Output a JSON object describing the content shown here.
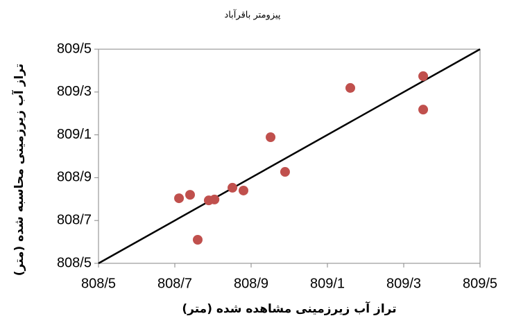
{
  "chart_data": {
    "type": "scatter",
    "title": "پیزومتر باقرآباد",
    "x_label": "تراز آب زیرزمینی مشاهده شده (متر)",
    "y_label": "تراز آب زیرزمینی محاسبه شده (متر)",
    "x": [
      808.711,
      808.74,
      808.76,
      808.789,
      808.804,
      808.851,
      808.88,
      808.951,
      808.989,
      809.16,
      809.351,
      809.351
    ],
    "values": [
      808.804,
      808.82,
      808.61,
      808.794,
      808.798,
      808.853,
      808.84,
      809.089,
      808.927,
      809.319,
      809.374,
      809.218
    ],
    "color": "#c0504d",
    "identity_line": true,
    "xlim": [
      808.5,
      809.5
    ],
    "ylim": [
      808.5,
      809.5
    ],
    "xticks": [
      {
        "value": 808.5,
        "label": "808/5"
      },
      {
        "value": 808.7,
        "label": "808/7"
      },
      {
        "value": 808.9,
        "label": "808/9"
      },
      {
        "value": 809.1,
        "label": "809/1"
      },
      {
        "value": 809.3,
        "label": "809/3"
      },
      {
        "value": 809.5,
        "label": "809/5"
      }
    ],
    "yticks": [
      {
        "value": 808.5,
        "label": "808/5"
      },
      {
        "value": 808.7,
        "label": "808/7"
      },
      {
        "value": 808.9,
        "label": "808/9"
      },
      {
        "value": 809.1,
        "label": "809/1"
      },
      {
        "value": 809.3,
        "label": "809/3"
      },
      {
        "value": 809.5,
        "label": "809/5"
      }
    ],
    "grid": false
  }
}
